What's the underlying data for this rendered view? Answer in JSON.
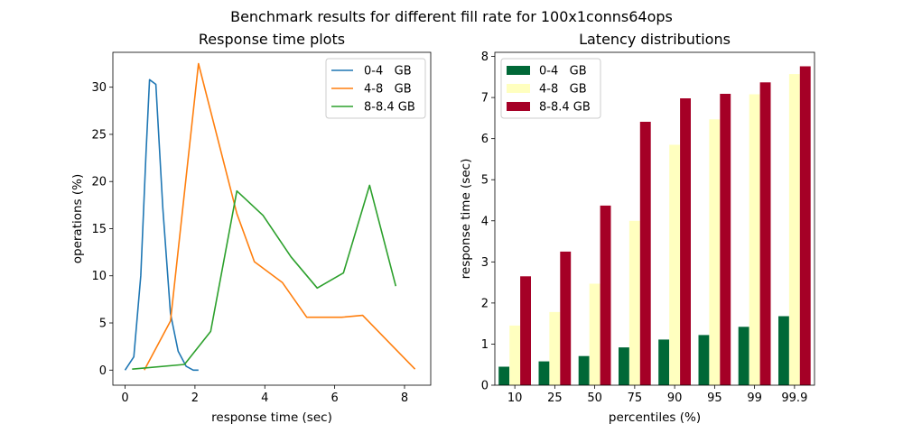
{
  "suptitle": "Benchmark results for different fill rate for 100x1conns64ops",
  "chart_data": [
    {
      "type": "line",
      "title": "Response time plots",
      "xlabel": "response time (sec)",
      "ylabel": "operations (%)",
      "xlim": [
        -0.35,
        8.75
      ],
      "ylim": [
        -1.6,
        33.7
      ],
      "xticks": [
        0,
        2,
        4,
        6,
        8
      ],
      "yticks": [
        0,
        5,
        10,
        15,
        20,
        25,
        30
      ],
      "grid": false,
      "legend_position": "top-right",
      "series": [
        {
          "name": "0-4   GB",
          "color": "#1f77b4",
          "x": [
            0.0,
            0.25,
            0.45,
            0.6,
            0.7,
            0.88,
            1.08,
            1.3,
            1.52,
            1.75,
            1.95,
            2.1
          ],
          "y": [
            0.0,
            1.4,
            10.0,
            23.0,
            30.8,
            30.3,
            17.2,
            6.0,
            2.0,
            0.4,
            0.0,
            0.0
          ]
        },
        {
          "name": "4-8   GB",
          "color": "#ff7f0e",
          "x": [
            0.55,
            1.3,
            2.1,
            3.2,
            3.7,
            4.5,
            5.2,
            6.2,
            6.8,
            8.3
          ],
          "y": [
            0.0,
            5.2,
            32.5,
            16.6,
            11.5,
            9.3,
            5.6,
            5.6,
            5.8,
            0.1
          ]
        },
        {
          "name": "8-8.4 GB",
          "color": "#2ca02c",
          "x": [
            0.2,
            1.7,
            2.45,
            3.2,
            3.95,
            4.75,
            5.5,
            6.25,
            7.0,
            7.75
          ],
          "y": [
            0.1,
            0.6,
            4.1,
            19.0,
            16.4,
            12.0,
            8.7,
            10.3,
            19.6,
            8.9
          ]
        }
      ]
    },
    {
      "type": "bar",
      "title": "Latency distributions",
      "xlabel": "percentiles (%)",
      "ylabel": "response time (sec)",
      "ylim": [
        0,
        8.1
      ],
      "yticks": [
        0,
        1,
        2,
        3,
        4,
        5,
        6,
        7,
        8
      ],
      "grid": false,
      "legend_position": "top-left",
      "categories": [
        "10",
        "25",
        "50",
        "75",
        "90",
        "95",
        "99",
        "99.9"
      ],
      "series": [
        {
          "name": "0-4   GB",
          "color": "#006837",
          "values": [
            0.45,
            0.58,
            0.71,
            0.92,
            1.11,
            1.22,
            1.42,
            1.68
          ]
        },
        {
          "name": "4-8   GB",
          "color": "#ffffbf",
          "values": [
            1.45,
            1.78,
            2.47,
            4.0,
            5.85,
            6.47,
            7.08,
            7.57
          ]
        },
        {
          "name": "8-8.4 GB",
          "color": "#a50026",
          "values": [
            2.65,
            3.25,
            4.37,
            6.41,
            6.98,
            7.09,
            7.37,
            7.76
          ]
        }
      ]
    }
  ]
}
